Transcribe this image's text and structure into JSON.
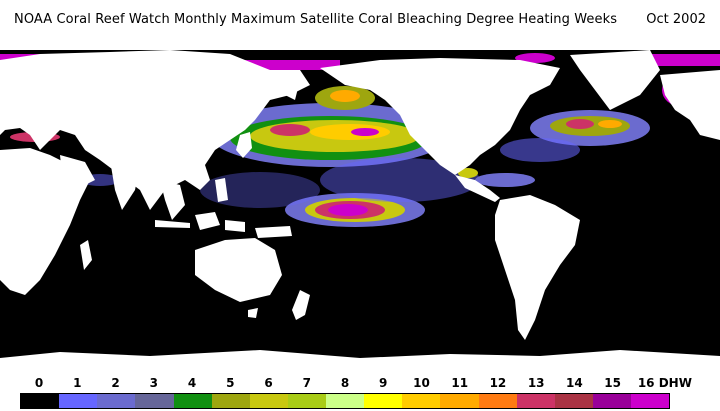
{
  "header": {
    "title": "NOAA Coral Reef Watch Monthly Maximum Satellite Coral Bleaching Degree Heating Weeks",
    "date": "Oct 2002"
  },
  "legend": {
    "unit": "DHW",
    "labels": [
      "0",
      "1",
      "2",
      "3",
      "4",
      "5",
      "6",
      "7",
      "8",
      "9",
      "10",
      "11",
      "12",
      "13",
      "14",
      "15",
      "16 DHW"
    ],
    "colors": [
      "#000000",
      "#6666ff",
      "#6b6bcf",
      "#666699",
      "#119011",
      "#9ea60f",
      "#c8c810",
      "#a9cc16",
      "#ccff88",
      "#ffff00",
      "#ffcc00",
      "#ffaa00",
      "#ff7b12",
      "#cc3366",
      "#aa3344",
      "#990099",
      "#cc00cc"
    ]
  },
  "map": {
    "land_color": "#ffffff",
    "ocean_color": "#000000"
  }
}
